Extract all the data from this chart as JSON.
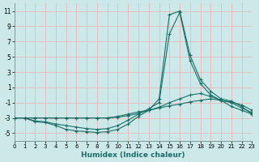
{
  "xlabel": "Humidex (Indice chaleur)",
  "background_color": "#cce8e8",
  "grid_color": "#e8b8b8",
  "line_color": "#1a6e6a",
  "xlim": [
    0,
    23
  ],
  "ylim": [
    -6,
    12
  ],
  "yticks": [
    -5,
    -3,
    -1,
    1,
    3,
    5,
    7,
    9,
    11
  ],
  "xticks": [
    0,
    1,
    2,
    3,
    4,
    5,
    6,
    7,
    8,
    9,
    10,
    11,
    12,
    13,
    14,
    15,
    16,
    17,
    18,
    19,
    20,
    21,
    22,
    23
  ],
  "series": [
    {
      "x": [
        0,
        1,
        2,
        3,
        4,
        5,
        6,
        7,
        8,
        9,
        10,
        11,
        12,
        13,
        14,
        15,
        16,
        17,
        18,
        19,
        20,
        21,
        22,
        23
      ],
      "y": [
        -3,
        -3,
        -3.5,
        -3.6,
        -4.0,
        -4.5,
        -4.7,
        -4.8,
        -4.9,
        -4.8,
        -4.5,
        -3.8,
        -2.8,
        -2.0,
        -0.5,
        10.5,
        11.0,
        5.2,
        2.0,
        0.5,
        -0.5,
        -0.8,
        -1.5,
        -2.5
      ]
    },
    {
      "x": [
        0,
        1,
        2,
        3,
        4,
        5,
        6,
        7,
        8,
        9,
        10,
        11,
        12,
        13,
        14,
        15,
        16,
        17,
        18,
        19,
        20,
        21,
        22,
        23
      ],
      "y": [
        -3,
        -3,
        -3.4,
        -3.5,
        -3.8,
        -4.0,
        -4.2,
        -4.4,
        -4.5,
        -4.4,
        -4.0,
        -3.3,
        -2.5,
        -1.8,
        -1.0,
        8.0,
        10.8,
        4.5,
        1.5,
        0.0,
        -0.7,
        -1.0,
        -1.7,
        -2.3
      ]
    },
    {
      "x": [
        0,
        1,
        2,
        3,
        4,
        5,
        6,
        7,
        8,
        9,
        10,
        11,
        12,
        13,
        14,
        15,
        16,
        17,
        18,
        19,
        20,
        21,
        22,
        23
      ],
      "y": [
        -3,
        -3,
        -3,
        -3,
        -3,
        -3,
        -3,
        -3,
        -3,
        -3,
        -2.9,
        -2.7,
        -2.4,
        -2.0,
        -1.6,
        -1.0,
        -0.5,
        0.0,
        0.2,
        -0.2,
        -0.7,
        -1.5,
        -2.0,
        -2.5
      ]
    },
    {
      "x": [
        0,
        1,
        2,
        3,
        4,
        5,
        6,
        7,
        8,
        9,
        10,
        11,
        12,
        13,
        14,
        15,
        16,
        17,
        18,
        19,
        20,
        21,
        22,
        23
      ],
      "y": [
        -3,
        -3,
        -3,
        -3,
        -3,
        -3,
        -3,
        -3,
        -3,
        -3,
        -2.8,
        -2.5,
        -2.2,
        -2.0,
        -1.7,
        -1.4,
        -1.2,
        -0.9,
        -0.7,
        -0.5,
        -0.7,
        -0.9,
        -1.3,
        -2.0
      ]
    }
  ]
}
